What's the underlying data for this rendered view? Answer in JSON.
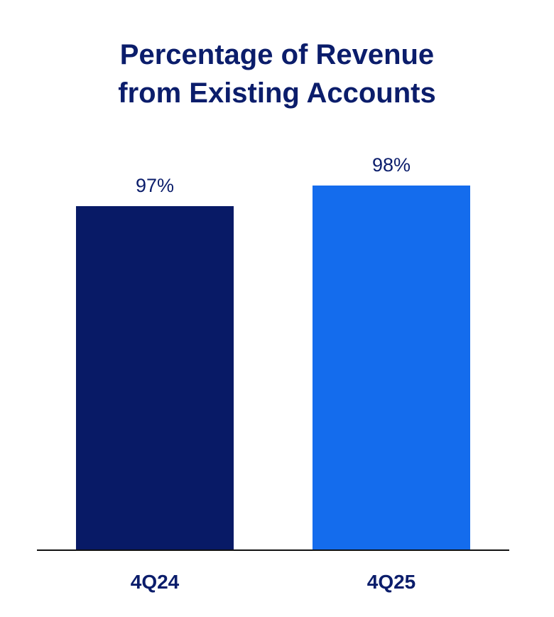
{
  "chart_data": {
    "type": "bar",
    "title_lines": [
      "Percentage of Revenue",
      "from Existing Accounts"
    ],
    "categories": [
      "4Q24",
      "4Q25"
    ],
    "values": [
      97,
      98
    ],
    "value_labels": [
      "97%",
      "98%"
    ],
    "colors": [
      "#081a66",
      "#146ced"
    ],
    "axis_color": "#111111",
    "ylim": [
      0,
      100
    ],
    "grid": false,
    "legend": "none"
  }
}
